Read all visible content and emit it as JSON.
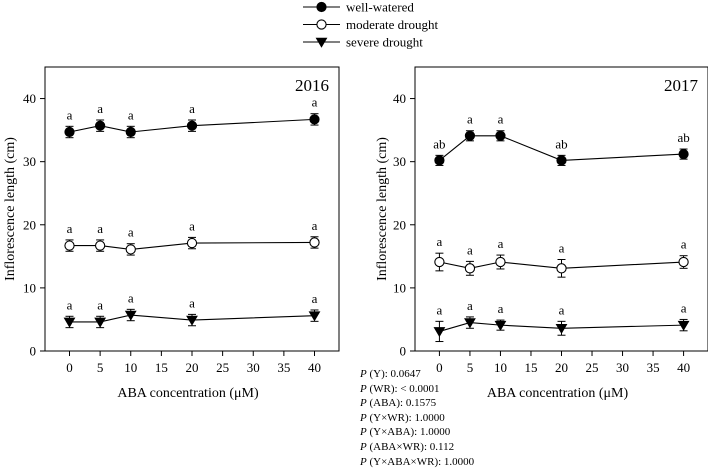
{
  "legend": {
    "placement": "top-center",
    "entries": [
      {
        "label": "well-watered",
        "marker": "filled-circle"
      },
      {
        "label": "moderate drought",
        "marker": "open-circle"
      },
      {
        "label": "severe drought",
        "marker": "filled-triangle-down"
      }
    ]
  },
  "chart_data": [
    {
      "type": "line",
      "title": "2016",
      "xlabel": "ABA concentration (μM)",
      "ylabel": "Inflorescence length (cm)",
      "x_ticks": [
        0,
        5,
        10,
        15,
        20,
        25,
        30,
        35,
        40
      ],
      "y_ticks": [
        0,
        10,
        20,
        30,
        40
      ],
      "xlim": [
        -4,
        44
      ],
      "ylim": [
        0,
        45
      ],
      "grid": false,
      "x": [
        0,
        5,
        10,
        20,
        40
      ],
      "series": [
        {
          "name": "well-watered",
          "marker": "filled-circle",
          "values": [
            34.7,
            35.7,
            34.7,
            35.7,
            36.7
          ],
          "errors": [
            0.9,
            0.9,
            0.9,
            0.9,
            0.9
          ],
          "labels": [
            "a",
            "a",
            "a",
            "a",
            "a"
          ]
        },
        {
          "name": "moderate drought",
          "marker": "open-circle",
          "values": [
            16.7,
            16.7,
            16.1,
            17.1,
            17.2
          ],
          "errors": [
            0.9,
            0.9,
            0.9,
            0.9,
            0.9
          ],
          "labels": [
            "a",
            "a",
            "a",
            "a",
            "a"
          ]
        },
        {
          "name": "severe drought",
          "marker": "filled-triangle-down",
          "values": [
            4.6,
            4.6,
            5.7,
            4.9,
            5.6
          ],
          "errors": [
            0.9,
            0.9,
            0.9,
            0.9,
            0.9
          ],
          "labels": [
            "a",
            "a",
            "a",
            "a",
            "a"
          ]
        }
      ]
    },
    {
      "type": "line",
      "title": "2017",
      "xlabel": "ABA concentration (μM)",
      "ylabel": "Inflorescence length (cm)",
      "x_ticks": [
        0,
        5,
        10,
        15,
        20,
        25,
        30,
        35,
        40
      ],
      "y_ticks": [
        0,
        10,
        20,
        30,
        40
      ],
      "xlim": [
        -4,
        44
      ],
      "ylim": [
        0,
        45
      ],
      "grid": false,
      "x": [
        0,
        5,
        10,
        20,
        40
      ],
      "series": [
        {
          "name": "well-watered",
          "marker": "filled-circle",
          "values": [
            30.2,
            34.1,
            34.1,
            30.2,
            31.2
          ],
          "errors": [
            0.8,
            0.8,
            0.8,
            0.8,
            0.8
          ],
          "labels": [
            "ab",
            "a",
            "a",
            "ab",
            "ab"
          ]
        },
        {
          "name": "moderate drought",
          "marker": "open-circle",
          "values": [
            14.1,
            13.1,
            14.1,
            13.1,
            14.1
          ],
          "errors": [
            1.4,
            1.1,
            1.1,
            1.4,
            1.0
          ],
          "labels": [
            "a",
            "a",
            "a",
            "a",
            "a"
          ]
        },
        {
          "name": "severe drought",
          "marker": "filled-triangle-down",
          "values": [
            3.1,
            4.5,
            4.1,
            3.6,
            4.1
          ],
          "errors": [
            1.6,
            0.9,
            0.8,
            1.1,
            0.9
          ],
          "labels": [
            "a",
            "a",
            "a",
            "a",
            "a"
          ]
        }
      ]
    }
  ],
  "stats": [
    {
      "p": "P",
      "text": " (Y): 0.0647"
    },
    {
      "p": "P",
      "text": " (WR): < 0.0001"
    },
    {
      "p": "P",
      "text": " (ABA): 0.1575"
    },
    {
      "p": "P",
      "text": " (Y×WR): 1.0000"
    },
    {
      "p": "P",
      "text": " (Y×ABA): 1.0000"
    },
    {
      "p": "P",
      "text": " (ABA×WR): 0.112"
    },
    {
      "p": "P",
      "text": " (Y×ABA×WR): 1.0000"
    }
  ]
}
